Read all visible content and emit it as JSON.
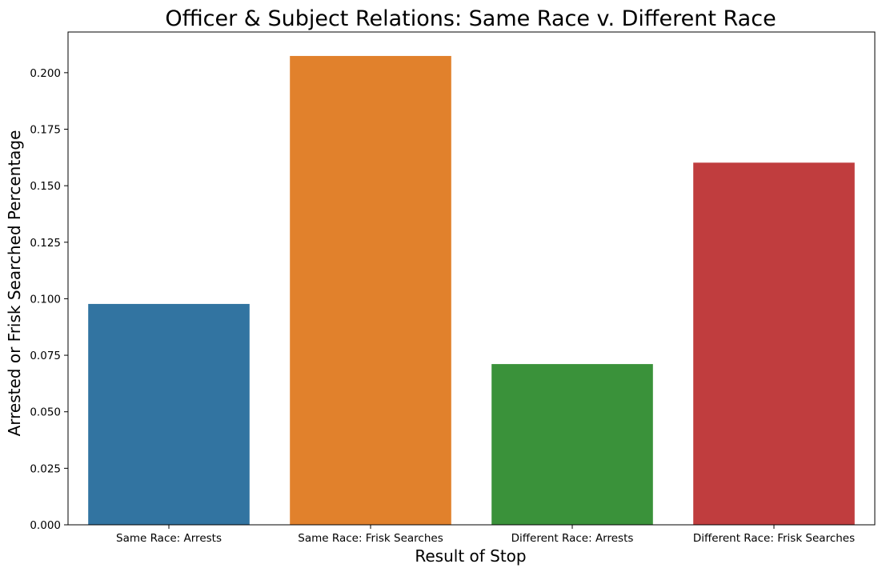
{
  "chart_data": {
    "type": "bar",
    "title": "Officer & Subject Relations: Same Race v. Different Race",
    "xlabel": "Result of Stop",
    "ylabel": "Arrested or Frisk Searched Percentage",
    "categories": [
      "Same Race: Arrests",
      "Same Race: Frisk Searches",
      "Different Race: Arrests",
      "Different Race: Frisk Searches"
    ],
    "values": [
      0.0977,
      0.2074,
      0.0711,
      0.1602
    ],
    "colors": [
      "#3274a1",
      "#e1812c",
      "#3a923a",
      "#c03d3e"
    ],
    "ylim": [
      0,
      0.218
    ],
    "yticks": [
      0.0,
      0.025,
      0.05,
      0.075,
      0.1,
      0.125,
      0.15,
      0.175,
      0.2
    ],
    "ytick_labels": [
      "0.000",
      "0.025",
      "0.050",
      "0.075",
      "0.100",
      "0.125",
      "0.150",
      "0.175",
      "0.200"
    ],
    "grid": false,
    "legend": false
  }
}
